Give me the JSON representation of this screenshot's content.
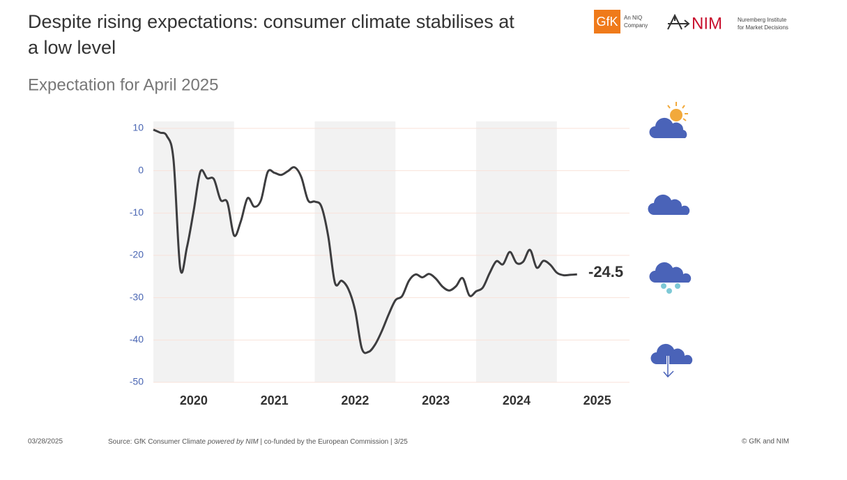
{
  "header": {
    "title_lines": [
      "Despite rising expectations: consumer climate stabilises at",
      "a low level"
    ],
    "subtitle": "Expectation for April 2025",
    "logo_gfk": "GfK",
    "logo_gfk_tag": [
      "An NIQ",
      "Company"
    ],
    "logo_nim": "NIM",
    "logo_nim_tag": [
      "Nuremberg Institute",
      "for Market Decisions"
    ]
  },
  "chart_data": {
    "type": "line",
    "x": [
      2020,
      2020.083,
      2020.167,
      2020.25,
      2020.333,
      2020.417,
      2020.5,
      2020.583,
      2020.667,
      2020.75,
      2020.833,
      2020.917,
      2021,
      2021.083,
      2021.167,
      2021.25,
      2021.333,
      2021.417,
      2021.5,
      2021.583,
      2021.667,
      2021.75,
      2021.833,
      2021.917,
      2022,
      2022.083,
      2022.167,
      2022.25,
      2022.333,
      2022.417,
      2022.5,
      2022.583,
      2022.667,
      2022.75,
      2022.833,
      2022.917,
      2023,
      2023.083,
      2023.167,
      2023.25,
      2023.333,
      2023.417,
      2023.5,
      2023.583,
      2023.667,
      2023.75,
      2023.833,
      2023.917,
      2024,
      2024.083,
      2024.167,
      2024.25,
      2024.333,
      2024.417,
      2024.5,
      2024.583,
      2024.667,
      2024.75,
      2024.833,
      2024.917,
      2025,
      2025.083,
      2025.167,
      2025.25
    ],
    "series": [
      {
        "name": "Consumer climate",
        "color": "#3d3d3f",
        "values": [
          9.7,
          9,
          8.2,
          2.5,
          -23.1,
          -18,
          -9.4,
          -0.2,
          -1.8,
          -2,
          -6.9,
          -7.5,
          -15.3,
          -12,
          -6.5,
          -8.5,
          -7,
          -0.3,
          -0.5,
          -1,
          -0.1,
          0.8,
          -1.5,
          -7,
          -7.3,
          -8.5,
          -15.5,
          -26.5,
          -26,
          -28,
          -33,
          -42,
          -42.8,
          -41,
          -37.8,
          -33.9,
          -30.6,
          -29.6,
          -26,
          -24.5,
          -25.2,
          -24.4,
          -25.5,
          -27.4,
          -28.3,
          -27.3,
          -25.4,
          -29.5,
          -28.5,
          -27.6,
          -24.2,
          -21.4,
          -22.1,
          -19.2,
          -21.8,
          -21.5,
          -18.7,
          -22.9,
          -21.3,
          -22.2,
          -24.1,
          -24.7,
          -24.6,
          -24.5
        ]
      }
    ],
    "xlim": [
      2020,
      2025.9
    ],
    "xticks": [
      {
        "value": 2020.5,
        "label": "2020"
      },
      {
        "value": 2021.5,
        "label": "2021"
      },
      {
        "value": 2022.5,
        "label": "2022"
      },
      {
        "value": 2023.5,
        "label": "2023"
      },
      {
        "value": 2024.5,
        "label": "2024"
      },
      {
        "value": 2025.5,
        "label": "2025"
      }
    ],
    "shaded_ranges": [
      [
        2020,
        2021
      ],
      [
        2022,
        2023
      ],
      [
        2024,
        2025
      ]
    ],
    "ylim": [
      -50,
      10
    ],
    "yticks": [
      10,
      0,
      -10,
      -20,
      -30,
      -40,
      -50
    ],
    "grid": true
  },
  "footer": {
    "date": "03/28/2025",
    "source_a": "Source: GfK Consumer Climate ",
    "source_b": "powered by NIM",
    "source_c": " | co-funded by the European Commission | 3/25",
    "copyright": "© GfK and NIM"
  }
}
